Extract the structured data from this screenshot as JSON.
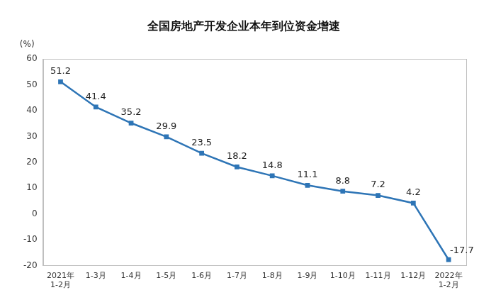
{
  "chart_data": {
    "type": "line",
    "title": "全国房地产开发企业本年到位资金增速",
    "y_label": "(%)",
    "categories": [
      "2021年\n1-2月",
      "1-3月",
      "1-4月",
      "1-5月",
      "1-6月",
      "1-7月",
      "1-8月",
      "1-9月",
      "1-10月",
      "1-11月",
      "1-12月",
      "2022年\n1-2月"
    ],
    "values": [
      51.2,
      41.4,
      35.2,
      29.9,
      23.5,
      18.2,
      14.8,
      11.1,
      8.8,
      7.2,
      4.2,
      -17.7
    ],
    "color": "#2e75b6",
    "marker": "square",
    "line_style": "solid",
    "ylim": [
      -20,
      60
    ],
    "yticks": [
      -20,
      -10,
      0,
      10,
      20,
      30,
      40,
      50,
      60
    ],
    "grid": false,
    "data_labels": true
  }
}
